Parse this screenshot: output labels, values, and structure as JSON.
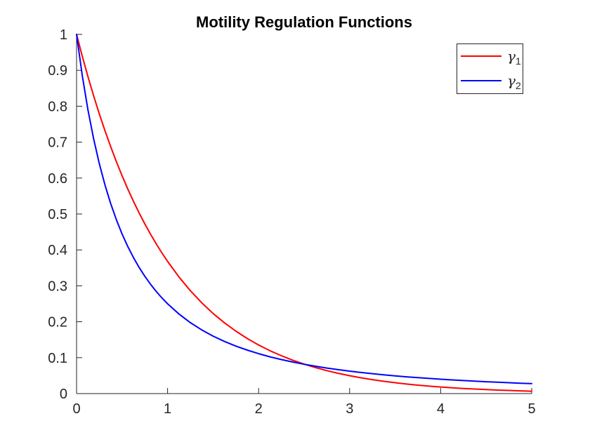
{
  "figure": {
    "title": "Motility Regulation Functions"
  },
  "chart_data": {
    "type": "line",
    "title": "Motility Regulation Functions",
    "xlabel": "",
    "ylabel": "",
    "xlim": [
      0,
      5
    ],
    "ylim": [
      0,
      1
    ],
    "grid": false,
    "box": false,
    "tick_direction": "in",
    "background_color": "#ffffff",
    "axis_color": "#262626",
    "title_color": "#000000",
    "x_ticks": [
      0,
      1,
      2,
      3,
      4,
      5
    ],
    "x_tick_labels": [
      "0",
      "1",
      "2",
      "3",
      "4",
      "5"
    ],
    "y_ticks": [
      0,
      0.1,
      0.2,
      0.3,
      0.4,
      0.5,
      0.6,
      0.7,
      0.8,
      0.9,
      1
    ],
    "y_tick_labels": [
      "0",
      "0.1",
      "0.2",
      "0.3",
      "0.4",
      "0.5",
      "0.6",
      "0.7",
      "0.8",
      "0.9",
      "1"
    ],
    "legend": {
      "position": "top-right",
      "border_color": "#262626",
      "text_color": "#262626",
      "entries": [
        {
          "name": "gamma-1",
          "symbol": "γ",
          "subscript": "1",
          "color": "#ff0000"
        },
        {
          "name": "gamma-2",
          "symbol": "γ",
          "subscript": "2",
          "color": "#0000ff"
        }
      ]
    },
    "x": [
      0,
      0.0625,
      0.125,
      0.1875,
      0.25,
      0.3125,
      0.375,
      0.4375,
      0.5,
      0.5625,
      0.625,
      0.6875,
      0.75,
      0.8125,
      0.875,
      0.9375,
      1,
      1.125,
      1.25,
      1.375,
      1.5,
      1.625,
      1.75,
      1.875,
      2,
      2.125,
      2.25,
      2.375,
      2.5,
      2.625,
      2.75,
      2.875,
      3,
      3.125,
      3.25,
      3.375,
      3.5,
      3.625,
      3.75,
      3.875,
      4,
      4.125,
      4.25,
      4.375,
      4.5,
      4.625,
      4.75,
      4.875,
      5
    ],
    "series": [
      {
        "name": "gamma-1",
        "color": "#ff0000",
        "line_width": 2,
        "values": [
          1,
          0.9394,
          0.8825,
          0.829,
          0.7788,
          0.7316,
          0.6873,
          0.6456,
          0.6065,
          0.5698,
          0.5353,
          0.5028,
          0.4724,
          0.4437,
          0.4169,
          0.3916,
          0.3679,
          0.3247,
          0.2865,
          0.2528,
          0.2231,
          0.1969,
          0.1738,
          0.1534,
          0.1353,
          0.1194,
          0.1054,
          0.093,
          0.0821,
          0.0724,
          0.0639,
          0.0564,
          0.0498,
          0.0439,
          0.0388,
          0.0342,
          0.0302,
          0.0266,
          0.0235,
          0.0208,
          0.0183,
          0.0162,
          0.0143,
          0.0126,
          0.0111,
          0.0098,
          0.0087,
          0.0076,
          0.0067
        ]
      },
      {
        "name": "gamma-2",
        "color": "#0000ff",
        "line_width": 2,
        "values": [
          1,
          0.8858,
          0.7901,
          0.7091,
          0.64,
          0.5805,
          0.5289,
          0.4839,
          0.4444,
          0.4096,
          0.3787,
          0.3512,
          0.3265,
          0.3044,
          0.2844,
          0.2664,
          0.25,
          0.2215,
          0.1975,
          0.1773,
          0.16,
          0.1451,
          0.1322,
          0.121,
          0.1111,
          0.1024,
          0.0947,
          0.0878,
          0.0816,
          0.0761,
          0.0711,
          0.0666,
          0.0625,
          0.0588,
          0.0554,
          0.0522,
          0.0494,
          0.0467,
          0.0443,
          0.0421,
          0.04,
          0.0381,
          0.0363,
          0.0346,
          0.0331,
          0.0316,
          0.0302,
          0.029,
          0.0278
        ]
      }
    ]
  }
}
